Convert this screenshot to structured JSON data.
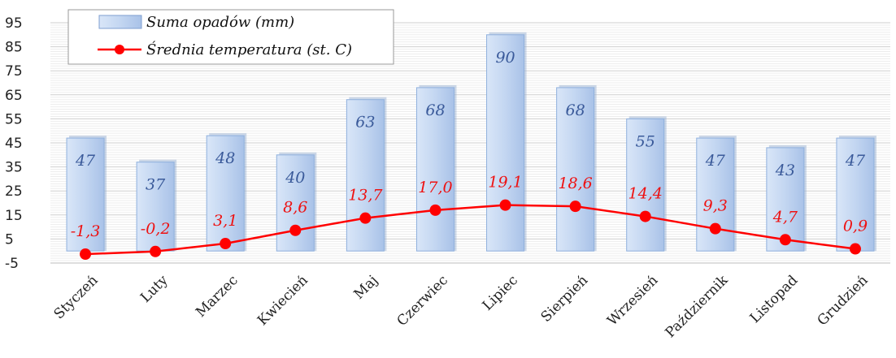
{
  "chart_data": {
    "type": "bar",
    "categories": [
      "Styczeń",
      "Luty",
      "Marzec",
      "Kwiecień",
      "Maj",
      "Czerwiec",
      "Lipiec",
      "Sierpień",
      "Wrzesień",
      "Październik",
      "Listopad",
      "Grudzień"
    ],
    "series": [
      {
        "name": "Suma opadów (mm)",
        "type": "bar",
        "values": [
          47,
          37,
          48,
          40,
          63,
          68,
          90,
          68,
          55,
          47,
          43,
          47
        ],
        "labels": [
          "47",
          "37",
          "48",
          "40",
          "63",
          "68",
          "90",
          "68",
          "55",
          "47",
          "43",
          "47"
        ],
        "color": "#b9cfee"
      },
      {
        "name": "Średnia temperatura (st. C)",
        "type": "line",
        "values": [
          -1.3,
          -0.2,
          3.1,
          8.6,
          13.7,
          17.0,
          19.1,
          18.6,
          14.4,
          9.3,
          4.7,
          0.9
        ],
        "labels": [
          "-1,3",
          "-0,2",
          "3,1",
          "8,6",
          "13,7",
          "17,0",
          "19,1",
          "18,6",
          "14,4",
          "9,3",
          "4,7",
          "0,9"
        ],
        "color": "#ff0000"
      }
    ],
    "yticks": [
      "95",
      "85",
      "75",
      "65",
      "55",
      "45",
      "35",
      "25",
      "15",
      "5",
      "-5"
    ],
    "ylim": [
      -5,
      95
    ],
    "grid": true,
    "legend": "top-left"
  }
}
